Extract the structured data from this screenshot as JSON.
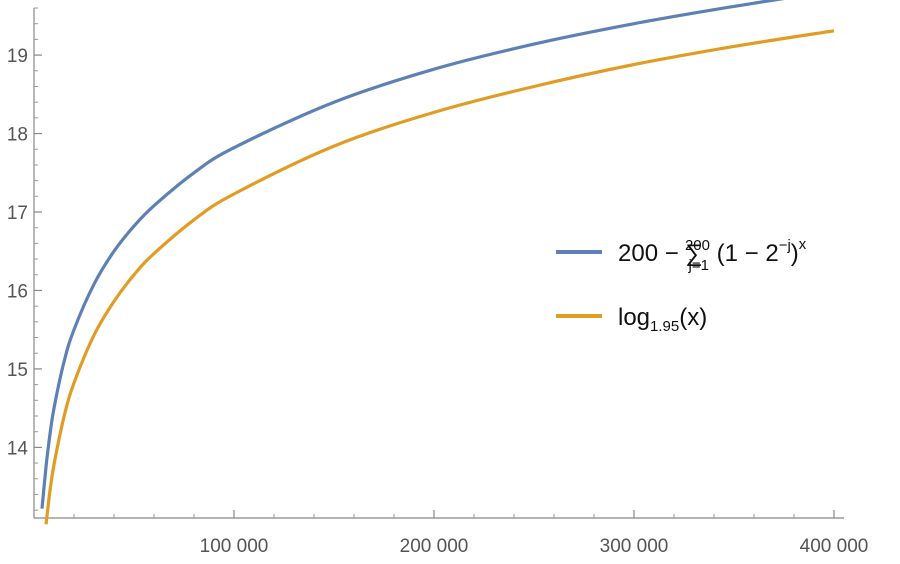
{
  "chart_data": {
    "type": "line",
    "xlim": [
      0,
      400000
    ],
    "ylim": [
      13.1,
      19.6
    ],
    "x_ticks": [
      100000,
      200000,
      300000,
      400000
    ],
    "x_tick_labels": [
      "100 000",
      "200 000",
      "300 000",
      "400 000"
    ],
    "y_ticks": [
      14,
      15,
      16,
      17,
      18,
      19
    ],
    "y_tick_labels": [
      "14",
      "15",
      "16",
      "17",
      "18",
      "19"
    ],
    "grid": false,
    "legend_position": "right",
    "series": [
      {
        "name_parts": {
          "main": "200 − ∑",
          "sub": "j=1",
          "sup": "200",
          "tail": " (1 − 2",
          "exp": "−j",
          "close": ")",
          "outer_exp": "x"
        },
        "color": "#5e81b5",
        "x": [
          4000,
          6000,
          8000,
          10000,
          15000,
          20000,
          30000,
          40000,
          50000,
          60000,
          80000,
          100000,
          150000,
          200000,
          250000,
          300000,
          350000,
          400000
        ],
        "y": [
          13.22,
          13.75,
          14.17,
          14.5,
          15.09,
          15.5,
          16.08,
          16.5,
          16.82,
          17.08,
          17.5,
          17.82,
          18.4,
          18.82,
          19.14,
          19.4,
          19.62,
          19.82
        ]
      },
      {
        "name_parts": {
          "main": "log",
          "sub": "1.95",
          "tail": "(x)"
        },
        "color": "#e19c24",
        "x": [
          4000,
          6000,
          8000,
          10000,
          15000,
          20000,
          30000,
          40000,
          50000,
          60000,
          80000,
          100000,
          150000,
          200000,
          250000,
          300000,
          350000,
          400000
        ],
        "y": [
          12.41,
          13.02,
          13.45,
          13.78,
          14.39,
          14.82,
          15.43,
          15.86,
          16.2,
          16.47,
          16.9,
          17.23,
          17.84,
          18.27,
          18.6,
          18.88,
          19.11,
          19.31
        ]
      }
    ]
  }
}
